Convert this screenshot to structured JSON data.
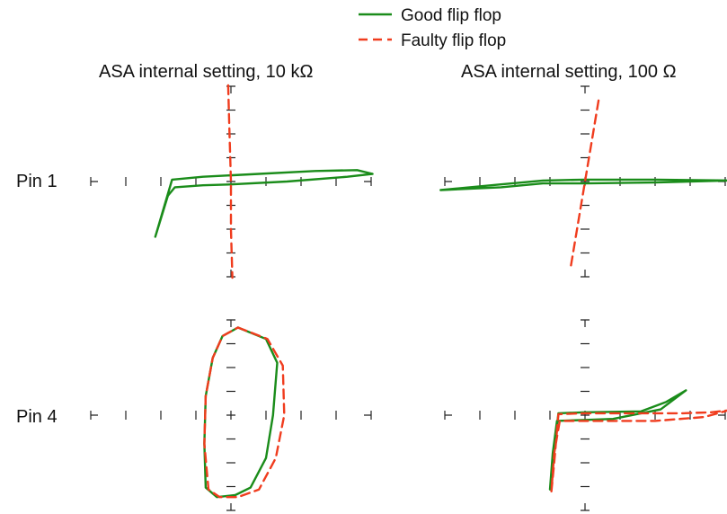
{
  "chart_data": {
    "type": "line",
    "legend": {
      "placement": "top-center",
      "entries": [
        {
          "label": "Good flip flop",
          "color": "#1a8c1a",
          "style": "solid"
        },
        {
          "label": "Faulty flip flop",
          "color": "#f03c1e",
          "style": "dashed"
        }
      ]
    },
    "column_titles": [
      "ASA internal setting, 10 kΩ",
      "ASA internal setting, 100 Ω"
    ],
    "row_labels": [
      "Pin 1",
      "Pin 4"
    ],
    "axis_range": {
      "x": [
        -1,
        1
      ],
      "y": [
        -1,
        1
      ]
    },
    "panels": [
      {
        "row": 0,
        "col": 0,
        "series": [
          {
            "name": "Good flip flop",
            "points": [
              [
                -0.54,
                -0.58
              ],
              [
                -0.51,
                -0.44
              ],
              [
                -0.45,
                -0.15
              ],
              [
                -0.4,
                -0.06
              ],
              [
                -0.2,
                -0.04
              ],
              [
                0.0,
                -0.03
              ],
              [
                0.4,
                0.0
              ],
              [
                0.83,
                0.05
              ],
              [
                1.01,
                0.08
              ],
              [
                0.9,
                0.12
              ],
              [
                0.6,
                0.11
              ],
              [
                0.2,
                0.08
              ],
              [
                -0.2,
                0.05
              ],
              [
                -0.42,
                0.02
              ],
              [
                -0.54,
                -0.58
              ]
            ]
          },
          {
            "name": "Faulty flip flop",
            "points": [
              [
                -0.02,
                1.01
              ],
              [
                -0.01,
                0.5
              ],
              [
                0.0,
                0.0
              ],
              [
                0.0,
                -0.5
              ],
              [
                0.01,
                -1.01
              ]
            ]
          }
        ]
      },
      {
        "row": 0,
        "col": 1,
        "series": [
          {
            "name": "Good flip flop",
            "points": [
              [
                -1.03,
                -0.09
              ],
              [
                -0.6,
                -0.06
              ],
              [
                -0.3,
                -0.02
              ],
              [
                0.0,
                -0.02
              ],
              [
                0.5,
                -0.01
              ],
              [
                1.03,
                0.01
              ],
              [
                0.5,
                0.02
              ],
              [
                0.0,
                0.02
              ],
              [
                -0.3,
                0.01
              ],
              [
                -0.6,
                -0.03
              ],
              [
                -1.03,
                -0.09
              ]
            ]
          },
          {
            "name": "Faulty flip flop",
            "points": [
              [
                -0.1,
                -0.88
              ],
              [
                0.0,
                0.0
              ],
              [
                0.1,
                0.88
              ]
            ]
          }
        ]
      },
      {
        "row": 1,
        "col": 0,
        "series": [
          {
            "name": "Good flip flop",
            "points": [
              [
                0.05,
                0.92
              ],
              [
                0.25,
                0.8
              ],
              [
                0.33,
                0.55
              ],
              [
                0.3,
                0.0
              ],
              [
                0.25,
                -0.45
              ],
              [
                0.14,
                -0.76
              ],
              [
                0.03,
                -0.84
              ],
              [
                -0.1,
                -0.86
              ],
              [
                -0.18,
                -0.76
              ],
              [
                -0.19,
                -0.3
              ],
              [
                -0.18,
                0.2
              ],
              [
                -0.13,
                0.6
              ],
              [
                -0.06,
                0.83
              ],
              [
                0.05,
                0.92
              ]
            ]
          },
          {
            "name": "Faulty flip flop",
            "points": [
              [
                0.05,
                0.92
              ],
              [
                0.26,
                0.8
              ],
              [
                0.37,
                0.52
              ],
              [
                0.38,
                0.0
              ],
              [
                0.32,
                -0.45
              ],
              [
                0.2,
                -0.78
              ],
              [
                0.05,
                -0.86
              ],
              [
                -0.08,
                -0.86
              ],
              [
                -0.16,
                -0.78
              ],
              [
                -0.19,
                -0.3
              ],
              [
                -0.18,
                0.2
              ],
              [
                -0.13,
                0.6
              ],
              [
                -0.06,
                0.83
              ],
              [
                0.05,
                0.92
              ]
            ]
          }
        ]
      },
      {
        "row": 1,
        "col": 1,
        "series": [
          {
            "name": "Good flip flop",
            "points": [
              [
                -0.25,
                -0.78
              ],
              [
                -0.23,
                -0.5
              ],
              [
                -0.19,
                0.02
              ],
              [
                0.0,
                0.03
              ],
              [
                0.4,
                0.04
              ],
              [
                0.58,
                0.14
              ],
              [
                0.72,
                0.26
              ],
              [
                0.54,
                0.06
              ],
              [
                0.2,
                -0.04
              ],
              [
                0.0,
                -0.05
              ],
              [
                -0.2,
                -0.06
              ],
              [
                -0.23,
                -0.4
              ],
              [
                -0.25,
                -0.78
              ]
            ]
          },
          {
            "name": "Faulty flip flop",
            "points": [
              [
                -0.24,
                -0.8
              ],
              [
                -0.22,
                -0.5
              ],
              [
                -0.19,
                0.01
              ],
              [
                0.0,
                0.02
              ],
              [
                0.4,
                0.02
              ],
              [
                0.7,
                0.02
              ],
              [
                0.9,
                0.03
              ],
              [
                1.02,
                0.05
              ],
              [
                0.85,
                -0.02
              ],
              [
                0.5,
                -0.06
              ],
              [
                0.2,
                -0.06
              ],
              [
                0.0,
                -0.06
              ],
              [
                -0.18,
                -0.06
              ],
              [
                -0.22,
                -0.4
              ],
              [
                -0.24,
                -0.8
              ]
            ]
          }
        ]
      }
    ]
  }
}
